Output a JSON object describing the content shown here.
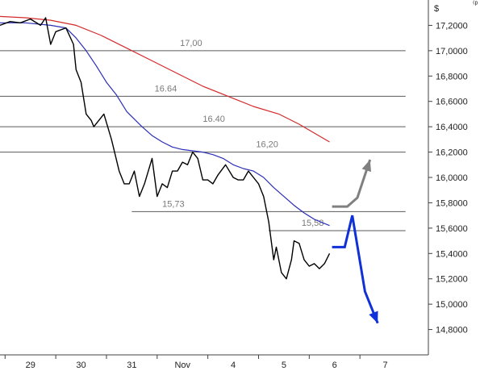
{
  "chart_data": {
    "type": "line",
    "currency_label": "$",
    "ylim": [
      14.6,
      17.4
    ],
    "y_ticks": [
      17.2,
      17.0,
      16.8,
      16.6,
      16.4,
      16.2,
      16.0,
      15.8,
      15.6,
      15.4,
      15.2,
      15.0,
      14.8
    ],
    "y_tick_labels": [
      "17,2000",
      "17,0000",
      "16,8000",
      "16,6000",
      "16,4000",
      "16,2000",
      "16,0000",
      "15,8000",
      "15,6000",
      "15,4000",
      "15,2000",
      "15,0000",
      "14,8000"
    ],
    "x_labels": [
      {
        "label": "29",
        "x": 0.6
      },
      {
        "label": "30",
        "x": 1.6
      },
      {
        "label": "31",
        "x": 2.6
      },
      {
        "label": "Nov",
        "x": 3.6
      },
      {
        "label": "4",
        "x": 4.6
      },
      {
        "label": "5",
        "x": 5.6
      },
      {
        "label": "6",
        "x": 6.6
      },
      {
        "label": "7",
        "x": 7.6
      }
    ],
    "xlim": [
      0,
      8.45
    ],
    "levels": [
      {
        "value": 17.0,
        "label": "17,00",
        "label_x": 3.55,
        "x0": 0,
        "x1": 8.0
      },
      {
        "value": 16.64,
        "label": "16.64",
        "label_x": 3.05,
        "x0": 0,
        "x1": 8.0
      },
      {
        "value": 16.4,
        "label": "16.40",
        "label_x": 4.0,
        "x0": 0,
        "x1": 8.0
      },
      {
        "value": 16.2,
        "label": "16,20",
        "label_x": 5.05,
        "x0": 0,
        "x1": 8.0
      },
      {
        "value": 15.73,
        "label": "15,73",
        "label_x": 3.2,
        "x0": 2.6,
        "x1": 8.0
      },
      {
        "value": 15.58,
        "label": "15,58",
        "label_x": 5.95,
        "x0": 5.3,
        "x1": 8.0
      }
    ],
    "price": {
      "x": [
        0,
        0.2,
        0.4,
        0.6,
        0.8,
        0.9,
        1.0,
        1.1,
        1.3,
        1.45,
        1.5,
        1.6,
        1.7,
        1.8,
        1.85,
        1.95,
        2.05,
        2.2,
        2.35,
        2.45,
        2.55,
        2.65,
        2.75,
        2.85,
        3.0,
        3.1,
        3.2,
        3.3,
        3.4,
        3.5,
        3.6,
        3.7,
        3.8,
        3.9,
        4.0,
        4.1,
        4.2,
        4.3,
        4.45,
        4.6,
        4.7,
        4.8,
        4.9,
        5.0,
        5.1,
        5.2,
        5.3,
        5.4,
        5.45,
        5.55,
        5.65,
        5.75,
        5.8,
        5.9,
        6.0,
        6.1,
        6.2,
        6.3,
        6.4,
        6.5
      ],
      "y": [
        17.2,
        17.23,
        17.22,
        17.25,
        17.2,
        17.26,
        17.05,
        17.15,
        17.18,
        17.05,
        16.85,
        16.75,
        16.5,
        16.45,
        16.4,
        16.45,
        16.5,
        16.3,
        16.05,
        15.95,
        15.95,
        16.05,
        15.85,
        15.95,
        16.15,
        15.85,
        15.95,
        15.92,
        16.05,
        16.05,
        16.12,
        16.1,
        16.2,
        16.15,
        15.98,
        15.98,
        15.95,
        16.02,
        16.1,
        16.0,
        15.98,
        15.98,
        16.05,
        16.0,
        15.95,
        15.85,
        15.65,
        15.35,
        15.45,
        15.25,
        15.2,
        15.35,
        15.5,
        15.48,
        15.35,
        15.3,
        15.32,
        15.28,
        15.32,
        15.4
      ]
    },
    "ma_fast": {
      "x": [
        0,
        0.5,
        1.0,
        1.3,
        1.5,
        1.7,
        1.9,
        2.1,
        2.3,
        2.5,
        2.8,
        3.0,
        3.2,
        3.4,
        3.6,
        3.8,
        4.0,
        4.2,
        4.4,
        4.6,
        4.8,
        5.0,
        5.2,
        5.4,
        5.6,
        5.8,
        6.0,
        6.2,
        6.5
      ],
      "y": [
        17.22,
        17.22,
        17.2,
        17.18,
        17.1,
        17.0,
        16.88,
        16.75,
        16.65,
        16.52,
        16.4,
        16.33,
        16.28,
        16.24,
        16.22,
        16.21,
        16.2,
        16.18,
        16.15,
        16.1,
        16.07,
        16.05,
        16.0,
        15.92,
        15.85,
        15.78,
        15.72,
        15.67,
        15.62
      ]
    },
    "ma_slow": {
      "x": [
        0,
        0.5,
        1.0,
        1.5,
        2.0,
        2.5,
        3.0,
        3.5,
        4.0,
        4.5,
        5.0,
        5.5,
        5.9,
        6.2,
        6.5
      ],
      "y": [
        17.27,
        17.26,
        17.24,
        17.2,
        17.12,
        17.02,
        16.92,
        16.82,
        16.72,
        16.64,
        16.56,
        16.5,
        16.42,
        16.35,
        16.28
      ]
    },
    "scenario_up": {
      "x": [
        6.55,
        6.85,
        7.05,
        7.3
      ],
      "y": [
        15.77,
        15.77,
        15.84,
        16.14
      ]
    },
    "scenario_down": {
      "x": [
        6.55,
        6.8,
        6.95,
        7.2,
        7.45
      ],
      "y": [
        15.45,
        15.45,
        15.7,
        15.1,
        14.85
      ]
    },
    "colors": {
      "price": "#000000",
      "ma_fast": "#2a2fb5",
      "ma_slow": "#d42a2a",
      "level_line": "#5a5a5a",
      "scenario_up": "#808080",
      "scenario_down": "#1030d8",
      "axis": "#404040"
    }
  }
}
